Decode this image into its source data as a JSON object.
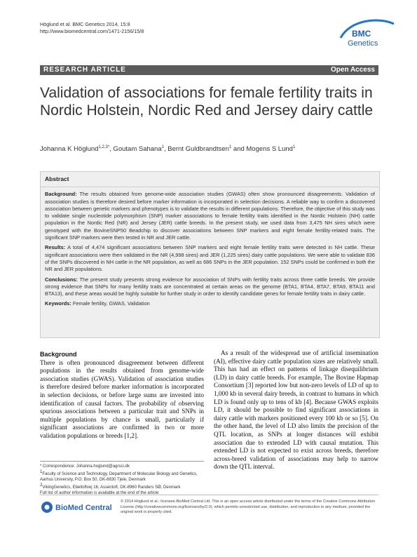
{
  "header": {
    "citation": "Höglund et al. BMC Genetics 2014, 15:8",
    "url": "http://www.biomedcentral.com/1471-2156/15/8"
  },
  "logo": {
    "line1": "BMC",
    "line2": "Genetics"
  },
  "banner": {
    "type": "RESEARCH ARTICLE",
    "access": "Open Access"
  },
  "title": "Validation of associations for female fertility traits in Nordic Holstein, Nordic Red and Jersey dairy cattle",
  "authors": [
    {
      "text": "Johanna K Höglund",
      "sup": "1,2,3*"
    },
    {
      "text": ", Goutam Sahana",
      "sup": "1"
    },
    {
      "text": ", Bernt Guldbrandtsen",
      "sup": "1"
    },
    {
      "text": " and Mogens S Lund",
      "sup": "1"
    }
  ],
  "abstract": {
    "heading": "Abstract",
    "sections": [
      {
        "label": "Background:",
        "text": "The results obtained from genome-wide association studies (GWAS) often show pronounced disagreements. Validation of association studies is therefore desired before marker information is incorporated in selection decisions. A reliable way to confirm a discovered association between genetic markers and phenotypes is to validate the results in different populations. Therefore, the objective of this study was to validate single nucleotide polymorphism (SNP) marker associations to female fertility traits identified in the Nordic Holstein (NH) cattle population in the Nordic Red (NR) and Jersey (JER) cattle breeds. In the present study, we used data from 3,475 NH sires which were genotyped with the BovineSNP50 Beadchip to discover associations between SNP markers and eight female fertility-related traits. The significant SNP markers were then tested in NR and JER cattle."
      },
      {
        "label": "Results:",
        "text": "A total of 4,474 significant associations between SNP markers and eight female fertility traits were detected in NH cattle. These significant associations were then validated in the NR (4,998 sires) and JER (1,225 sires) dairy cattle populations. We were able to validate 836 of the SNPs discovered in NH cattle in the NR population, as well as 686 SNPs in the JER population. 152 SNPs could be confirmed in both the NR and JER populations."
      },
      {
        "label": "Conclusions:",
        "text": "The present study presents strong evidence for association of SNPs with fertility traits across three cattle breeds. We provide strong evidence that SNPs for many fertility traits are concentrated at certain areas on the genome (BTA1, BTA4, BTA7, BTA9, BTA11 and BTA13), and these areas would be highly suitable for further study in order to identify candidate genes for female fertility traits in dairy cattle."
      }
    ],
    "keywords": {
      "label": "Keywords:",
      "text": "Female fertility, GWAS, Validation"
    }
  },
  "body": {
    "heading": "Background",
    "left": "There is often pronounced disagreement between different populations in the results obtained from genome-wide association studies (GWAS). Validation of association studies is therefore desired before marker information is incorporated in selection decisions, or before large sums are invested into identification of causal factors. The probability of observing spurious associations between a particular trait and SNPs in multiple populations by chance is small, particularly if significant associations are confirmed in two or more validation populations or breeds [1,2].",
    "right": "As a result of the widespread use of artificial insemination (AI), effective dairy cattle population sizes are relatively small. This has had an effect on patterns of linkage disequilibrium (LD) in dairy cattle breeds. For example, The Bovine Hapmap Consortium [3] reported low but non-zero levels of LD of up to 1,000 kb in several dairy breeds, in contrast to humans in which LD is found only up to tens of kb [4]. Because GWAS exploits LD, it should be possible to find significant associations in dairy cattle with markers positioned every 100 kb or so [5]. On the other hand, the level of LD also limits the precision of the QTL location, as SNPs at longer distances will exhibit association due to extended LD with causal mutation. This extended LD is not expected to exist across breeds, therefore across-breed validation of associations may help to narrow down the QTL interval."
  },
  "footnotes": {
    "correspondence": "* Correspondence: Johanna.hoglund@agrsci.dk",
    "affiliations": [
      {
        "mark": "1",
        "text": "Faculty of Science and Technology, Department of Molecular Biology and Genetics, Aarhus University, P.O. Box 50, DK-8830 Tjele, Denmark"
      },
      {
        "mark": "2",
        "text": "VikingGenetics, Ebeltoftvej 16, Assentoft, DK-8960 Randers SØ, Denmark"
      }
    ],
    "more": "Full list of author information is available at the end of the article"
  },
  "footer": {
    "publisher": "BioMed Central",
    "license": "© 2014 Höglund et al.; licensee BioMed Central Ltd. This is an open access article distributed under the terms of the Creative Commons Attribution License (http://creativecommons.org/licenses/by/2.0), which permits unrestricted use, distribution, and reproduction in any medium, provided the original work is properly cited."
  }
}
